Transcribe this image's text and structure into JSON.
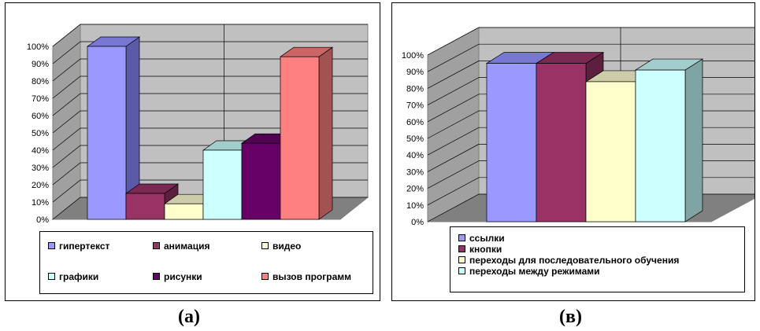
{
  "chart_data": [
    {
      "type": "bar",
      "series": [
        {
          "name": "гипертекст",
          "value": 100,
          "color": "#9999ff",
          "side": "#5a5aa8",
          "top": "#7878d4"
        },
        {
          "name": "анимация",
          "value": 15,
          "color": "#993366",
          "side": "#5c1f3d",
          "top": "#7a2952"
        },
        {
          "name": "видео",
          "value": 9,
          "color": "#ffffcc",
          "side": "#a3a383",
          "top": "#ccccaa"
        },
        {
          "name": "графики",
          "value": 40,
          "color": "#ccffff",
          "side": "#80a3a3",
          "top": "#a3cccc"
        },
        {
          "name": "рисунки",
          "value": 44,
          "color": "#660066",
          "side": "#3d003d",
          "top": "#520052"
        },
        {
          "name": "вызов программ",
          "value": 94,
          "color": "#ff8080",
          "side": "#a35252",
          "top": "#cc6666"
        }
      ],
      "yticks": [
        "0%",
        "10%",
        "20%",
        "30%",
        "40%",
        "50%",
        "60%",
        "70%",
        "80%",
        "90%",
        "100%"
      ],
      "ylim": [
        0,
        100
      ],
      "legend_position": "bottom",
      "caption": "(а)"
    },
    {
      "type": "bar",
      "series": [
        {
          "name": "ссылки",
          "value": 95,
          "color": "#9999ff",
          "side": "#5a5aa8",
          "top": "#7878d4"
        },
        {
          "name": "кнопки",
          "value": 95,
          "color": "#993366",
          "side": "#5c1f3d",
          "top": "#7a2952"
        },
        {
          "name": "переходы для последовательного обучения",
          "value": 84,
          "color": "#ffffcc",
          "side": "#a3a383",
          "top": "#ccccaa"
        },
        {
          "name": "переходы между режимами",
          "value": 91,
          "color": "#ccffff",
          "side": "#80a3a3",
          "top": "#a3cccc"
        }
      ],
      "yticks": [
        "0%",
        "10%",
        "20%",
        "30%",
        "40%",
        "50%",
        "60%",
        "70%",
        "80%",
        "90%",
        "100%"
      ],
      "ylim": [
        0,
        100
      ],
      "legend_position": "bottom",
      "caption": "(в)"
    }
  ]
}
